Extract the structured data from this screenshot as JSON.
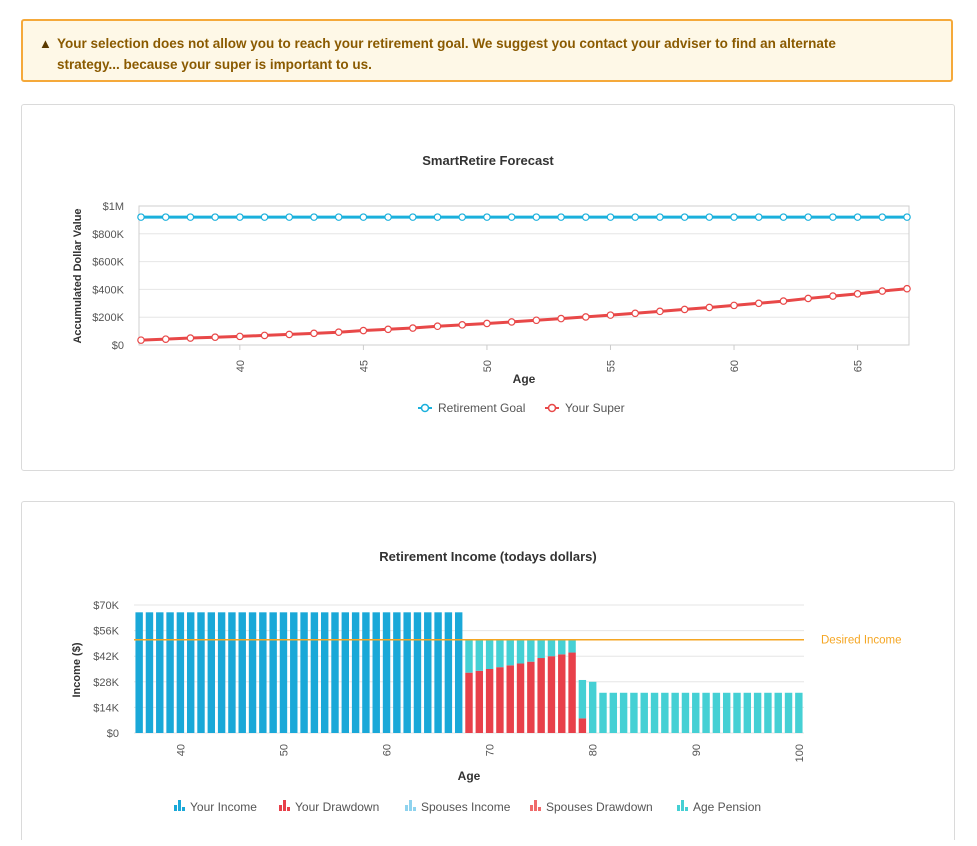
{
  "alert": {
    "icon": "warning-icon",
    "line1": "Your selection does not allow you to reach your retirement goal. We suggest you contact your adviser to find an alternate",
    "line2": "strategy... because your super is important to us."
  },
  "colors": {
    "goal": "#1ab0dc",
    "super": "#e84848",
    "your_income": "#1aa8d8",
    "your_drawdown": "#e8404a",
    "spouses_income": "#8fd3ee",
    "spouses_drawdown": "#f06a6a",
    "age_pension": "#45d0d4",
    "desired": "#f5a623",
    "alert_border": "#f5a93a",
    "alert_bg": "#fef8e7"
  },
  "chart_data": [
    {
      "type": "line",
      "title": "SmartRetire Forecast",
      "xlabel": "Age",
      "ylabel": "Accumulated Dollar Value",
      "xlim": [
        36,
        67
      ],
      "x_ticks": [
        40,
        45,
        50,
        55,
        60,
        65
      ],
      "ylim": [
        0,
        1000000
      ],
      "y_ticks": [
        {
          "v": 0,
          "label": "$0"
        },
        {
          "v": 200000,
          "label": "$200K"
        },
        {
          "v": 400000,
          "label": "$400K"
        },
        {
          "v": 600000,
          "label": "$600K"
        },
        {
          "v": 800000,
          "label": "$800K"
        },
        {
          "v": 1000000,
          "label": "$1M"
        }
      ],
      "grid": true,
      "legend_position": "bottom-center",
      "x": [
        36,
        37,
        38,
        39,
        40,
        41,
        42,
        43,
        44,
        45,
        46,
        47,
        48,
        49,
        50,
        51,
        52,
        53,
        54,
        55,
        56,
        57,
        58,
        59,
        60,
        61,
        62,
        63,
        64,
        65,
        66,
        67
      ],
      "series": [
        {
          "name": "Retirement Goal",
          "color_key": "goal",
          "values": [
            920000,
            920000,
            920000,
            920000,
            920000,
            920000,
            920000,
            920000,
            920000,
            920000,
            920000,
            920000,
            920000,
            920000,
            920000,
            920000,
            920000,
            920000,
            920000,
            920000,
            920000,
            920000,
            920000,
            920000,
            920000,
            920000,
            920000,
            920000,
            920000,
            920000,
            920000,
            920000
          ]
        },
        {
          "name": "Your Super",
          "color_key": "super",
          "values": [
            35000,
            42000,
            50000,
            56000,
            62000,
            69000,
            76000,
            84000,
            92000,
            104000,
            113000,
            122000,
            135000,
            145000,
            155000,
            166000,
            178000,
            190000,
            202000,
            215000,
            228000,
            242000,
            256000,
            270000,
            285000,
            300000,
            316000,
            335000,
            352000,
            368000,
            388000,
            405000
          ]
        }
      ]
    },
    {
      "type": "bar",
      "title": "Retirement Income (todays dollars)",
      "xlabel": "Age",
      "ylabel": "Income ($)",
      "xlim": [
        36,
        100
      ],
      "x_ticks": [
        40,
        50,
        60,
        70,
        80,
        90,
        100
      ],
      "ylim": [
        0,
        70000
      ],
      "y_ticks": [
        {
          "v": 0,
          "label": "$0"
        },
        {
          "v": 14000,
          "label": "$14K"
        },
        {
          "v": 28000,
          "label": "$28K"
        },
        {
          "v": 42000,
          "label": "$42K"
        },
        {
          "v": 56000,
          "label": "$56K"
        },
        {
          "v": 70000,
          "label": "$70K"
        }
      ],
      "grid": true,
      "legend_position": "bottom-center",
      "stacked": true,
      "desired_income": {
        "value": 51000,
        "label": "Desired Income"
      },
      "x": [
        36,
        37,
        38,
        39,
        40,
        41,
        42,
        43,
        44,
        45,
        46,
        47,
        48,
        49,
        50,
        51,
        52,
        53,
        54,
        55,
        56,
        57,
        58,
        59,
        60,
        61,
        62,
        63,
        64,
        65,
        66,
        67,
        68,
        69,
        70,
        71,
        72,
        73,
        74,
        75,
        76,
        77,
        78,
        79,
        80,
        81,
        82,
        83,
        84,
        85,
        86,
        87,
        88,
        89,
        90,
        91,
        92,
        93,
        94,
        95,
        96,
        97,
        98,
        99,
        100
      ],
      "series": [
        {
          "name": "Your Income",
          "color_key": "your_income",
          "values": [
            66000,
            66000,
            66000,
            66000,
            66000,
            66000,
            66000,
            66000,
            66000,
            66000,
            66000,
            66000,
            66000,
            66000,
            66000,
            66000,
            66000,
            66000,
            66000,
            66000,
            66000,
            66000,
            66000,
            66000,
            66000,
            66000,
            66000,
            66000,
            66000,
            66000,
            66000,
            66000,
            0,
            0,
            0,
            0,
            0,
            0,
            0,
            0,
            0,
            0,
            0,
            0,
            0,
            0,
            0,
            0,
            0,
            0,
            0,
            0,
            0,
            0,
            0,
            0,
            0,
            0,
            0,
            0,
            0,
            0,
            0,
            0,
            0
          ]
        },
        {
          "name": "Your Drawdown",
          "color_key": "your_drawdown",
          "values": [
            0,
            0,
            0,
            0,
            0,
            0,
            0,
            0,
            0,
            0,
            0,
            0,
            0,
            0,
            0,
            0,
            0,
            0,
            0,
            0,
            0,
            0,
            0,
            0,
            0,
            0,
            0,
            0,
            0,
            0,
            0,
            0,
            33000,
            34000,
            35000,
            36000,
            37000,
            38000,
            39000,
            41000,
            42000,
            43000,
            44000,
            8000,
            0,
            0,
            0,
            0,
            0,
            0,
            0,
            0,
            0,
            0,
            0,
            0,
            0,
            0,
            0,
            0,
            0,
            0,
            0,
            0,
            0
          ]
        },
        {
          "name": "Spouses Income",
          "color_key": "spouses_income",
          "values": [
            0,
            0,
            0,
            0,
            0,
            0,
            0,
            0,
            0,
            0,
            0,
            0,
            0,
            0,
            0,
            0,
            0,
            0,
            0,
            0,
            0,
            0,
            0,
            0,
            0,
            0,
            0,
            0,
            0,
            0,
            0,
            0,
            0,
            0,
            0,
            0,
            0,
            0,
            0,
            0,
            0,
            0,
            0,
            0,
            0,
            0,
            0,
            0,
            0,
            0,
            0,
            0,
            0,
            0,
            0,
            0,
            0,
            0,
            0,
            0,
            0,
            0,
            0,
            0,
            0
          ]
        },
        {
          "name": "Spouses Drawdown",
          "color_key": "spouses_drawdown",
          "values": [
            0,
            0,
            0,
            0,
            0,
            0,
            0,
            0,
            0,
            0,
            0,
            0,
            0,
            0,
            0,
            0,
            0,
            0,
            0,
            0,
            0,
            0,
            0,
            0,
            0,
            0,
            0,
            0,
            0,
            0,
            0,
            0,
            0,
            0,
            0,
            0,
            0,
            0,
            0,
            0,
            0,
            0,
            0,
            0,
            0,
            0,
            0,
            0,
            0,
            0,
            0,
            0,
            0,
            0,
            0,
            0,
            0,
            0,
            0,
            0,
            0,
            0,
            0,
            0,
            0
          ]
        },
        {
          "name": "Age Pension",
          "color_key": "age_pension",
          "values": [
            0,
            0,
            0,
            0,
            0,
            0,
            0,
            0,
            0,
            0,
            0,
            0,
            0,
            0,
            0,
            0,
            0,
            0,
            0,
            0,
            0,
            0,
            0,
            0,
            0,
            0,
            0,
            0,
            0,
            0,
            0,
            0,
            18000,
            17000,
            16000,
            15000,
            14000,
            13000,
            12000,
            10000,
            9000,
            8000,
            7000,
            21000,
            28000,
            22000,
            22000,
            22000,
            22000,
            22000,
            22000,
            22000,
            22000,
            22000,
            22000,
            22000,
            22000,
            22000,
            22000,
            22000,
            22000,
            22000,
            22000,
            22000,
            22000
          ]
        }
      ]
    }
  ]
}
